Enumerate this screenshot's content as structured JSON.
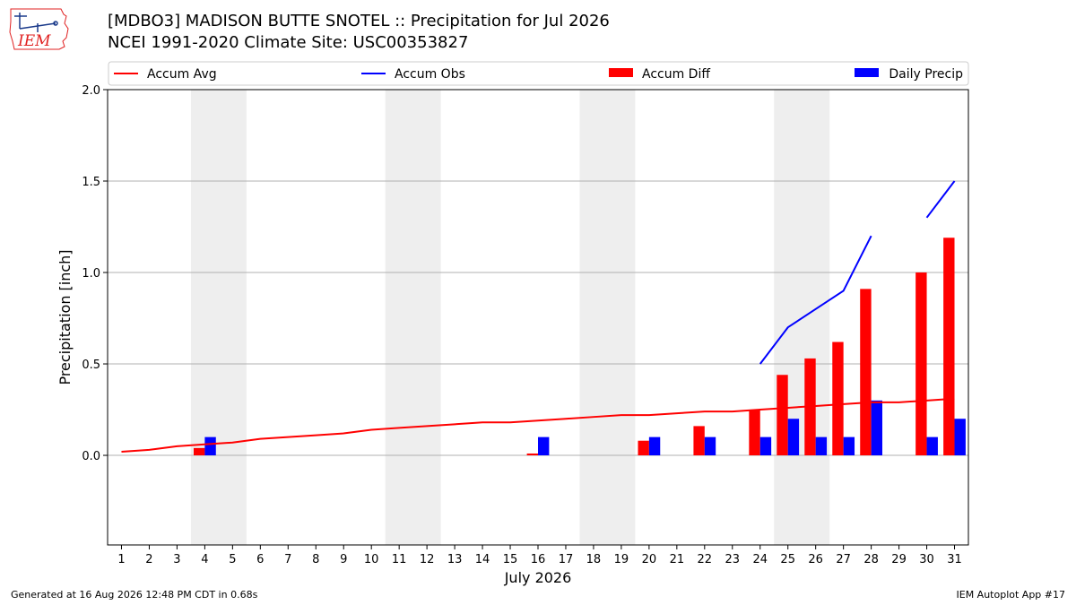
{
  "header": {
    "logo_text": "IEM",
    "title_line1": "[MDBO3] MADISON BUTTE SNOTEL :: Precipitation for Jul 2026",
    "title_line2": "NCEI 1991-2020 Climate Site: USC00353827"
  },
  "footer": {
    "generated": "Generated at 16 Aug 2026 12:48 PM CDT in 0.68s",
    "app": "IEM Autoplot App #17"
  },
  "colors": {
    "accum_avg": "#ff0000",
    "accum_obs": "#0000ff",
    "accum_diff": "#ff0000",
    "daily_precip": "#0000ff",
    "weekend_shade": "#eeeeee",
    "grid": "#b0b0b0"
  },
  "chart_data": {
    "type": "bar",
    "xlabel": "July 2026",
    "ylabel": "Precipitation [inch]",
    "xlim": [
      0.5,
      31.5
    ],
    "ylim": [
      -0.49,
      2.0
    ],
    "yticks": [
      0.0,
      0.5,
      1.0,
      1.5,
      2.0
    ],
    "ytick_labels": [
      "0.0",
      "0.5",
      "1.0",
      "1.5",
      "2.0"
    ],
    "x": [
      1,
      2,
      3,
      4,
      5,
      6,
      7,
      8,
      9,
      10,
      11,
      12,
      13,
      14,
      15,
      16,
      17,
      18,
      19,
      20,
      21,
      22,
      23,
      24,
      25,
      26,
      27,
      28,
      29,
      30,
      31
    ],
    "grid": "horizontal",
    "legend": {
      "placement": "top",
      "entries": [
        "Accum Avg",
        "Accum Obs",
        "Accum Diff",
        "Daily Precip"
      ]
    },
    "weekend_shading": [
      [
        3.5,
        5.5
      ],
      [
        10.5,
        12.5
      ],
      [
        17.5,
        19.5
      ],
      [
        24.5,
        26.5
      ]
    ],
    "series": [
      {
        "name": "Accum Avg",
        "kind": "line",
        "values": [
          0.02,
          0.03,
          0.05,
          0.06,
          0.07,
          0.09,
          0.1,
          0.11,
          0.12,
          0.14,
          0.15,
          0.16,
          0.17,
          0.18,
          0.18,
          0.19,
          0.2,
          0.21,
          0.22,
          0.22,
          0.23,
          0.24,
          0.24,
          0.25,
          0.26,
          0.27,
          0.28,
          0.29,
          0.29,
          0.3,
          0.31
        ]
      },
      {
        "name": "Accum Obs",
        "kind": "line",
        "values": [
          null,
          null,
          null,
          null,
          null,
          null,
          null,
          null,
          null,
          null,
          null,
          null,
          null,
          null,
          null,
          null,
          null,
          null,
          null,
          null,
          null,
          null,
          null,
          0.5,
          0.7,
          0.8,
          0.9,
          1.2,
          null,
          1.3,
          1.5
        ]
      },
      {
        "name": "Accum Diff",
        "kind": "bar",
        "values": [
          null,
          null,
          null,
          0.04,
          null,
          null,
          null,
          null,
          null,
          null,
          null,
          null,
          null,
          null,
          null,
          0.01,
          null,
          null,
          null,
          0.08,
          null,
          0.16,
          null,
          0.25,
          0.44,
          0.53,
          0.62,
          0.91,
          null,
          1.0,
          1.19
        ]
      },
      {
        "name": "Daily Precip",
        "kind": "bar",
        "values": [
          null,
          null,
          null,
          0.1,
          null,
          null,
          null,
          null,
          null,
          null,
          null,
          null,
          null,
          null,
          null,
          0.1,
          null,
          null,
          null,
          0.1,
          null,
          0.1,
          null,
          0.1,
          0.2,
          0.1,
          0.1,
          0.3,
          null,
          0.1,
          0.2
        ]
      }
    ]
  }
}
